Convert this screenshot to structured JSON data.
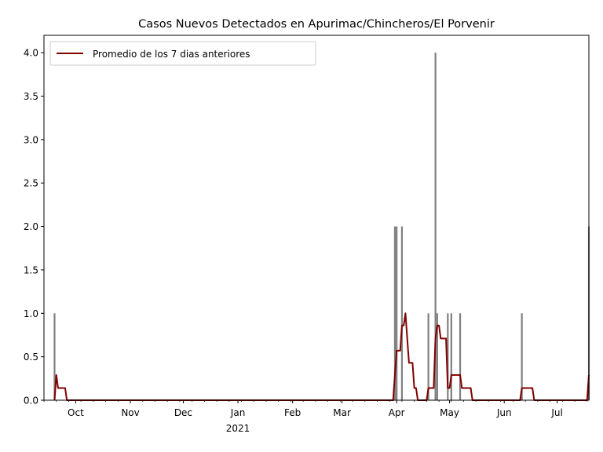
{
  "chart_data": {
    "type": "bar",
    "title": "Casos Nuevos Detectados en Apurimac/Chincheros/El Porvenir",
    "xlabel": "",
    "ylabel": "",
    "x_range": [
      "2020-09-13",
      "2021-07-19"
    ],
    "ylim": [
      0,
      4.2
    ],
    "y_ticks": [
      0.0,
      0.5,
      1.0,
      1.5,
      2.0,
      2.5,
      3.0,
      3.5,
      4.0
    ],
    "y_tick_labels": [
      "0.0",
      "0.5",
      "1.0",
      "1.5",
      "2.0",
      "2.5",
      "3.0",
      "3.5",
      "4.0"
    ],
    "x_ticks": [
      {
        "date": "2020-10-01",
        "label": "Oct",
        "sub": ""
      },
      {
        "date": "2020-11-01",
        "label": "Nov",
        "sub": ""
      },
      {
        "date": "2020-12-01",
        "label": "Dec",
        "sub": ""
      },
      {
        "date": "2021-01-01",
        "label": "Jan",
        "sub": "2021"
      },
      {
        "date": "2021-02-01",
        "label": "Feb",
        "sub": ""
      },
      {
        "date": "2021-03-01",
        "label": "Mar",
        "sub": ""
      },
      {
        "date": "2021-04-01",
        "label": "Apr",
        "sub": ""
      },
      {
        "date": "2021-05-01",
        "label": "May",
        "sub": ""
      },
      {
        "date": "2021-06-01",
        "label": "Jun",
        "sub": ""
      },
      {
        "date": "2021-07-01",
        "label": "Jul",
        "sub": ""
      }
    ],
    "grid": false,
    "legend_position": "top-left",
    "bar_color": "#808080",
    "line_color": "#800000",
    "bars": [
      {
        "date": "2020-09-19",
        "value": 1
      },
      {
        "date": "2021-03-31",
        "value": 2
      },
      {
        "date": "2021-04-01",
        "value": 2
      },
      {
        "date": "2021-04-04",
        "value": 2
      },
      {
        "date": "2021-04-19",
        "value": 1
      },
      {
        "date": "2021-04-23",
        "value": 4
      },
      {
        "date": "2021-04-24",
        "value": 1
      },
      {
        "date": "2021-04-30",
        "value": 1
      },
      {
        "date": "2021-05-02",
        "value": 1
      },
      {
        "date": "2021-05-07",
        "value": 1
      },
      {
        "date": "2021-06-11",
        "value": 1
      },
      {
        "date": "2021-07-19",
        "value": 2
      }
    ],
    "series": [
      {
        "name": "Promedio de los 7 dias anteriores",
        "points": [
          {
            "date": "2020-09-19",
            "value": 0.0
          },
          {
            "date": "2020-09-20",
            "value": 0.29
          },
          {
            "date": "2020-09-21",
            "value": 0.14
          },
          {
            "date": "2020-09-25",
            "value": 0.14
          },
          {
            "date": "2020-09-26",
            "value": 0.0
          },
          {
            "date": "2021-03-30",
            "value": 0.0
          },
          {
            "date": "2021-03-31",
            "value": 0.29
          },
          {
            "date": "2021-04-01",
            "value": 0.57
          },
          {
            "date": "2021-04-03",
            "value": 0.57
          },
          {
            "date": "2021-04-04",
            "value": 0.86
          },
          {
            "date": "2021-04-05",
            "value": 0.86
          },
          {
            "date": "2021-04-06",
            "value": 1.0
          },
          {
            "date": "2021-04-07",
            "value": 0.71
          },
          {
            "date": "2021-04-08",
            "value": 0.43
          },
          {
            "date": "2021-04-10",
            "value": 0.43
          },
          {
            "date": "2021-04-11",
            "value": 0.14
          },
          {
            "date": "2021-04-12",
            "value": 0.14
          },
          {
            "date": "2021-04-13",
            "value": 0.0
          },
          {
            "date": "2021-04-18",
            "value": 0.0
          },
          {
            "date": "2021-04-19",
            "value": 0.14
          },
          {
            "date": "2021-04-22",
            "value": 0.14
          },
          {
            "date": "2021-04-23",
            "value": 0.71
          },
          {
            "date": "2021-04-24",
            "value": 0.86
          },
          {
            "date": "2021-04-25",
            "value": 0.86
          },
          {
            "date": "2021-04-26",
            "value": 0.71
          },
          {
            "date": "2021-04-29",
            "value": 0.71
          },
          {
            "date": "2021-04-30",
            "value": 0.14
          },
          {
            "date": "2021-05-01",
            "value": 0.14
          },
          {
            "date": "2021-05-02",
            "value": 0.29
          },
          {
            "date": "2021-05-07",
            "value": 0.29
          },
          {
            "date": "2021-05-08",
            "value": 0.14
          },
          {
            "date": "2021-05-13",
            "value": 0.14
          },
          {
            "date": "2021-05-14",
            "value": 0.0
          },
          {
            "date": "2021-06-10",
            "value": 0.0
          },
          {
            "date": "2021-06-11",
            "value": 0.14
          },
          {
            "date": "2021-06-17",
            "value": 0.14
          },
          {
            "date": "2021-06-18",
            "value": 0.0
          },
          {
            "date": "2021-07-18",
            "value": 0.0
          },
          {
            "date": "2021-07-19",
            "value": 0.29
          }
        ]
      }
    ]
  }
}
